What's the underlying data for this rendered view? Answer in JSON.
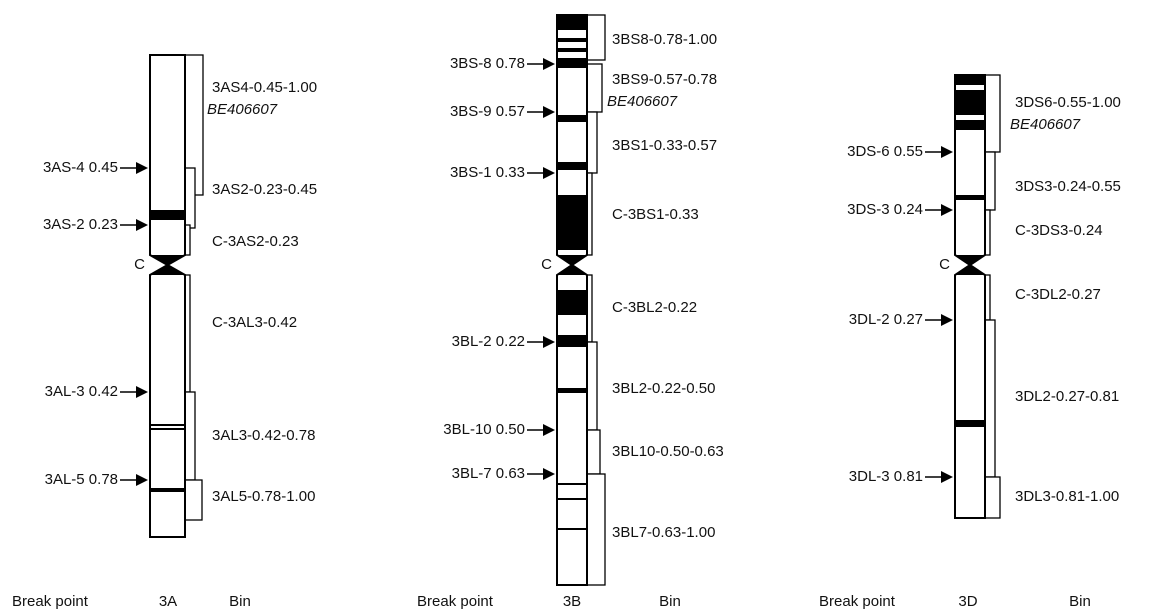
{
  "chromosomes": [
    {
      "name": "3A",
      "centromere": "C",
      "break_label": "Break point",
      "bin_label": "Bin",
      "breakpoints": [
        "3AS-4 0.45",
        "3AS-2 0.23",
        "3AL-3 0.42",
        "3AL-5 0.78"
      ],
      "bins": [
        {
          "label": "3AS4-0.45-1.00",
          "marker": "BE406607"
        },
        {
          "label": "3AS2-0.23-0.45"
        },
        {
          "label": "C-3AS2-0.23"
        },
        {
          "label": "C-3AL3-0.42"
        },
        {
          "label": "3AL3-0.42-0.78"
        },
        {
          "label": "3AL5-0.78-1.00"
        }
      ]
    },
    {
      "name": "3B",
      "centromere": "C",
      "break_label": "Break point",
      "bin_label": "Bin",
      "breakpoints": [
        "3BS-8 0.78",
        "3BS-9 0.57",
        "3BS-1 0.33",
        "3BL-2 0.22",
        "3BL-10 0.50",
        "3BL-7 0.63"
      ],
      "bins": [
        {
          "label": "3BS8-0.78-1.00"
        },
        {
          "label": "3BS9-0.57-0.78",
          "marker": "BE406607"
        },
        {
          "label": "3BS1-0.33-0.57"
        },
        {
          "label": "C-3BS1-0.33"
        },
        {
          "label": "C-3BL2-0.22"
        },
        {
          "label": "3BL2-0.22-0.50"
        },
        {
          "label": "3BL10-0.50-0.63"
        },
        {
          "label": "3BL7-0.63-1.00"
        }
      ]
    },
    {
      "name": "3D",
      "centromere": "C",
      "break_label": "Break point",
      "bin_label": "Bin",
      "breakpoints": [
        "3DS-6 0.55",
        "3DS-3 0.24",
        "3DL-2 0.27",
        "3DL-3 0.81"
      ],
      "bins": [
        {
          "label": "3DS6-0.55-1.00",
          "marker": "BE406607"
        },
        {
          "label": "3DS3-0.24-0.55"
        },
        {
          "label": "C-3DS3-0.24"
        },
        {
          "label": "C-3DL2-0.27"
        },
        {
          "label": "3DL2-0.27-0.81"
        },
        {
          "label": "3DL3-0.81-1.00"
        }
      ]
    }
  ]
}
